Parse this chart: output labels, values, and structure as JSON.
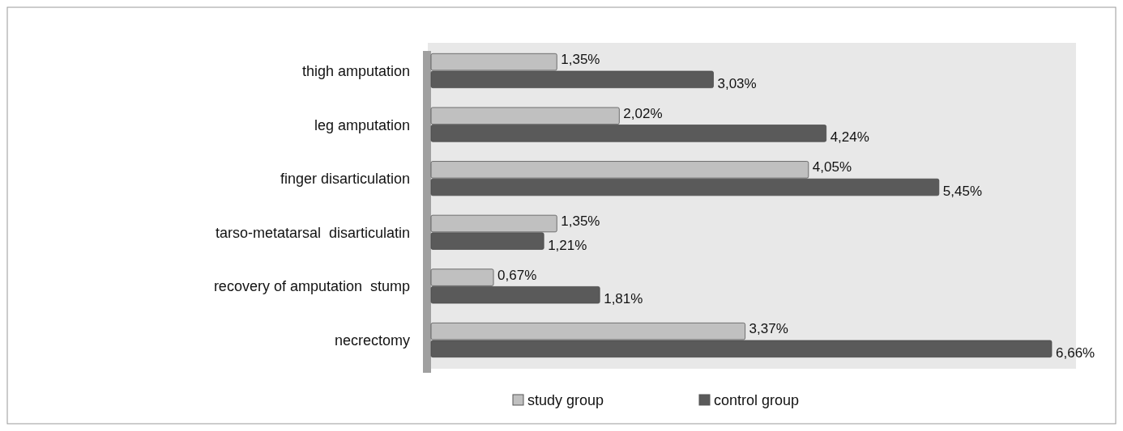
{
  "chart_data": {
    "type": "bar",
    "orientation": "horizontal",
    "categories": [
      "thigh amputation",
      "leg amputation",
      "finger disarticulation",
      "tarso-metatarsal  disarticulatin",
      "recovery of amputation  stump",
      "necrectomy"
    ],
    "series": [
      {
        "name": "study group",
        "color": "#c0c0c0",
        "values": [
          1.35,
          2.02,
          4.05,
          1.35,
          0.67,
          3.37
        ],
        "value_labels": [
          "1,35%",
          "2,02%",
          "4,05%",
          "1,35%",
          "0,67%",
          "3,37%"
        ]
      },
      {
        "name": "control group",
        "color": "#5a5a5a",
        "values": [
          3.03,
          4.24,
          5.45,
          1.21,
          1.81,
          6.66
        ],
        "value_labels": [
          "3,03%",
          "4,24%",
          "5,45%",
          "1,21%",
          "1,81%",
          "6,66%"
        ]
      }
    ],
    "legend": "bottom"
  }
}
